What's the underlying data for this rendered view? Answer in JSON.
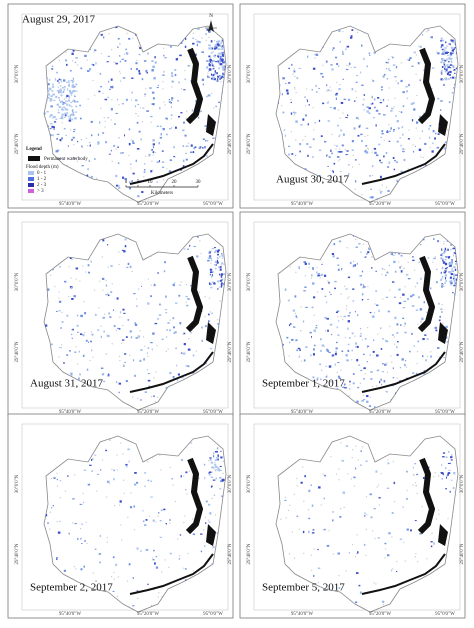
{
  "panels": [
    {
      "date": "August 29, 2017"
    },
    {
      "date": "August 30, 2017"
    },
    {
      "date": "August 31, 2017"
    },
    {
      "date": "September 1, 2017"
    },
    {
      "date": "September 2, 2017"
    },
    {
      "date": "September 5, 2017"
    }
  ],
  "legend": {
    "title": "Legend",
    "waterbody": "Permanent waterbody",
    "depth_title": "Flood depth (m)",
    "classes": [
      "0 - 1",
      "1 - 2",
      "2 - 3",
      "> 3"
    ]
  },
  "scale_bar": {
    "ticks": [
      0,
      5,
      10,
      20,
      30
    ],
    "unit": "Kilometers"
  },
  "north_arrow": "N",
  "coordinates": {
    "longitudes": [
      "95°40'0\"W",
      "95°20'0\"W",
      "95°0'0\"W"
    ],
    "latitudes": [
      "30°0'0\"N",
      "29°40'0\"N"
    ]
  }
}
